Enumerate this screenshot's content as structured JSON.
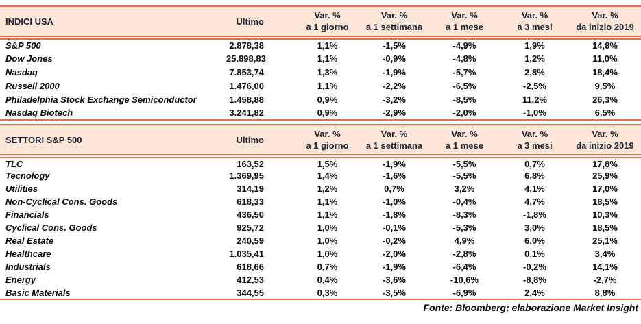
{
  "colors": {
    "accent_line": "#ec6b51",
    "header_bg": "#fbe6d7",
    "header_text": "#1b2433",
    "body_text": "#0a0a0a"
  },
  "tables": [
    {
      "title": "INDICI USA",
      "ultimo_label": "Ultimo",
      "var_headers": [
        {
          "line1": "Var. %",
          "line2": "a 1 giorno"
        },
        {
          "line1": "Var. %",
          "line2": "a 1 settimana"
        },
        {
          "line1": "Var. %",
          "line2": "a 1 mese"
        },
        {
          "line1": "Var. %",
          "line2": "a 3 mesi"
        },
        {
          "line1": "Var. %",
          "line2": "da inizio 2019"
        }
      ],
      "rows": [
        {
          "name": "S&P 500",
          "ultimo": "2.878,38",
          "vars": [
            "1,1%",
            "-1,5%",
            "-4,9%",
            "1,9%",
            "14,8%"
          ]
        },
        {
          "name": "Dow Jones",
          "ultimo": "25.898,83",
          "vars": [
            "1,1%",
            "-0,9%",
            "-4,8%",
            "1,2%",
            "11,0%"
          ]
        },
        {
          "name": "Nasdaq",
          "ultimo": "7.853,74",
          "vars": [
            "1,3%",
            "-1,9%",
            "-5,7%",
            "2,8%",
            "18,4%"
          ]
        },
        {
          "name": "Russell 2000",
          "ultimo": "1.476,00",
          "vars": [
            "1,1%",
            "-2,2%",
            "-6,5%",
            "-2,5%",
            "9,5%"
          ]
        },
        {
          "name": "Philadelphia Stock Exchange Semiconductor",
          "ultimo": "1.458,88",
          "vars": [
            "0,9%",
            "-3,2%",
            "-8,5%",
            "11,2%",
            "26,3%"
          ]
        },
        {
          "name": "Nasdaq Biotech",
          "ultimo": "3.241,82",
          "vars": [
            "0,9%",
            "-2,9%",
            "-2,0%",
            "-1,0%",
            "6,5%"
          ]
        }
      ]
    },
    {
      "title": "SETTORI S&P 500",
      "ultimo_label": "Ultimo",
      "var_headers": [
        {
          "line1": "Var. %",
          "line2": "a 1 giorno"
        },
        {
          "line1": "Var. %",
          "line2": "a 1 settimana"
        },
        {
          "line1": "Var. %",
          "line2": "a 1 mese"
        },
        {
          "line1": "Var. %",
          "line2": "a 3 mesi"
        },
        {
          "line1": "Var. %",
          "line2": "da inizio 2019"
        }
      ],
      "rows": [
        {
          "name": "TLC",
          "ultimo": "163,52",
          "vars": [
            "1,5%",
            "-1,9%",
            "-5,5%",
            "0,7%",
            "17,8%"
          ]
        },
        {
          "name": "Tecnology",
          "ultimo": "1.369,95",
          "vars": [
            "1,4%",
            "-1,6%",
            "-5,5%",
            "6,8%",
            "25,9%"
          ]
        },
        {
          "name": "Utilities",
          "ultimo": "314,19",
          "vars": [
            "1,2%",
            "0,7%",
            "3,2%",
            "4,1%",
            "17,0%"
          ]
        },
        {
          "name": "Non-Cyclical Cons. Goods",
          "ultimo": "618,33",
          "vars": [
            "1,1%",
            "-1,0%",
            "-0,4%",
            "4,7%",
            "18,5%"
          ]
        },
        {
          "name": "Financials",
          "ultimo": "436,50",
          "vars": [
            "1,1%",
            "-1,8%",
            "-8,3%",
            "-1,8%",
            "10,3%"
          ]
        },
        {
          "name": "Cyclical Cons. Goods",
          "ultimo": "925,72",
          "vars": [
            "1,0%",
            "-0,1%",
            "-5,3%",
            "3,0%",
            "18,5%"
          ]
        },
        {
          "name": "Real Estate",
          "ultimo": "240,59",
          "vars": [
            "1,0%",
            "-0,2%",
            "4,9%",
            "6,0%",
            "25,1%"
          ]
        },
        {
          "name": "Healthcare",
          "ultimo": "1.035,41",
          "vars": [
            "1,0%",
            "-2,0%",
            "-2,8%",
            "0,1%",
            "3,4%"
          ]
        },
        {
          "name": "Industrials",
          "ultimo": "618,66",
          "vars": [
            "0,7%",
            "-1,9%",
            "-6,4%",
            "-0,2%",
            "14,1%"
          ]
        },
        {
          "name": "Energy",
          "ultimo": "412,53",
          "vars": [
            "0,4%",
            "-3,6%",
            "-10,6%",
            "-8,8%",
            "-2,7%"
          ]
        },
        {
          "name": "Basic Materials",
          "ultimo": "344,55",
          "vars": [
            "0,3%",
            "-3,5%",
            "-6,9%",
            "2,4%",
            "8,8%"
          ]
        }
      ]
    }
  ],
  "footer": "Fonte: Bloomberg; elaborazione Market Insight"
}
